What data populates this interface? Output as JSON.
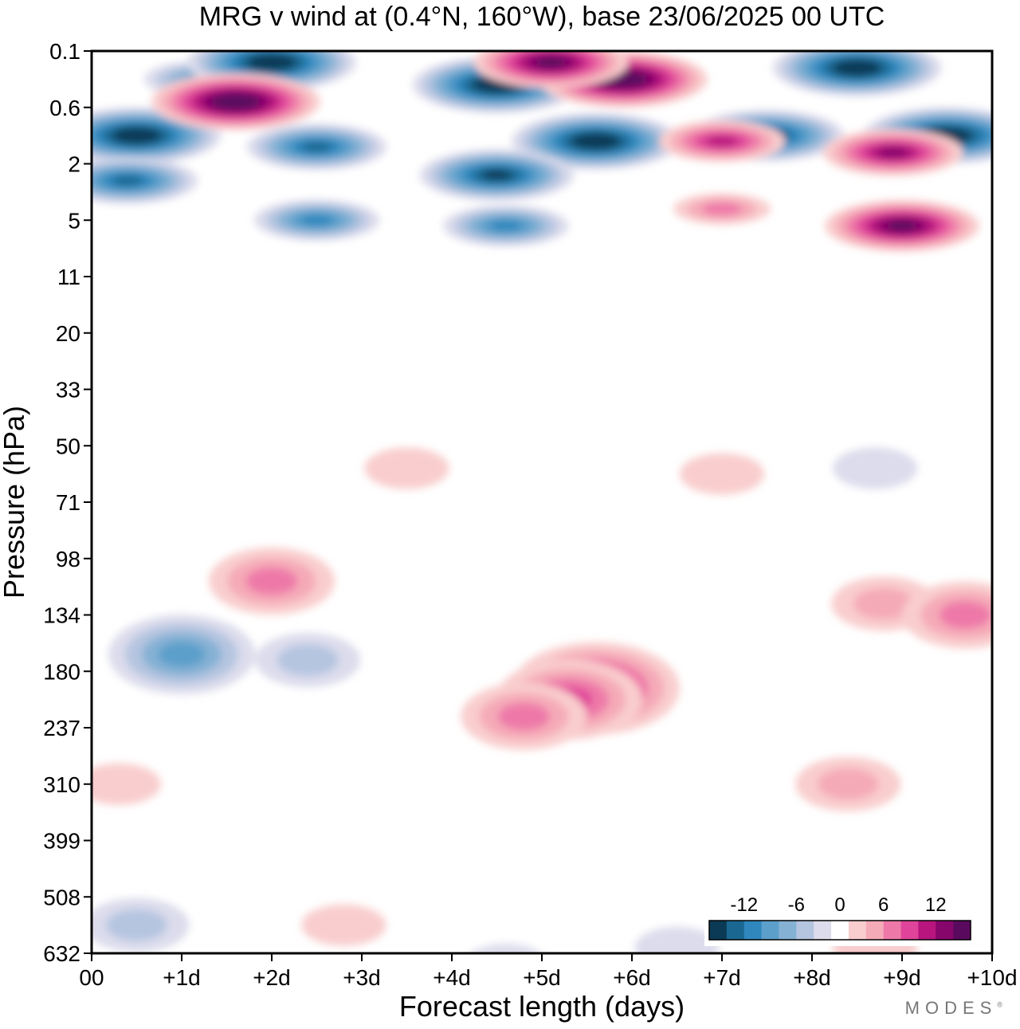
{
  "chart_data": {
    "type": "heatmap",
    "title": "MRG v wind at (0.4°N, 160°W),  base 23/06/2025  00 UTC",
    "xlabel": "Forecast length (days)",
    "ylabel": "Pressure (hPa)",
    "xlim": [
      0,
      10
    ],
    "x_ticks": [
      0,
      1,
      2,
      3,
      4,
      5,
      6,
      7,
      8,
      9,
      10
    ],
    "x_tick_labels": [
      "00",
      "+1d",
      "+2d",
      "+3d",
      "+4d",
      "+5d",
      "+6d",
      "+7d",
      "+8d",
      "+9d",
      "+10d"
    ],
    "y_levels": [
      0.1,
      0.6,
      2,
      5,
      11,
      20,
      33,
      50,
      71,
      98,
      134,
      180,
      237,
      310,
      399,
      508,
      632
    ],
    "y_tick_labels": [
      "0.1",
      "0.6",
      "2",
      "5",
      "11",
      "20",
      "33",
      "50",
      "71",
      "98",
      "134",
      "180",
      "237",
      "310",
      "399",
      "508",
      "632"
    ],
    "y_axis": "level index, pressure increasing downward",
    "colorbar": {
      "labels": [
        "-12",
        "-6",
        "0",
        "6",
        "12"
      ],
      "label_values": [
        -12,
        -6,
        0,
        6,
        12
      ],
      "bounds": [
        -16,
        -14,
        -12,
        -10,
        -8,
        -6,
        -4,
        -2,
        2,
        4,
        6,
        8,
        10,
        12,
        14,
        16
      ],
      "colors": [
        "#0b3a56",
        "#1a6892",
        "#2f87bd",
        "#5c9fcb",
        "#85b1d4",
        "#b5c5e0",
        "#dcdcec",
        "#ffffff",
        "#f9cdcd",
        "#f5aab8",
        "#ee79a8",
        "#e0449a",
        "#b8157f",
        "#87066c",
        "#5a0a5e"
      ],
      "placement": "bottom-right"
    },
    "features": [
      {
        "sign": "negative",
        "x": 1.2,
        "level": 0.5,
        "value": -8
      },
      {
        "sign": "negative",
        "x": 2.0,
        "level": 0.2,
        "value": -16
      },
      {
        "sign": "negative",
        "x": 4.5,
        "level": 0.6,
        "value": -16
      },
      {
        "sign": "negative",
        "x": 0.5,
        "level": 1.5,
        "value": -16
      },
      {
        "sign": "negative",
        "x": 2.5,
        "level": 1.7,
        "value": -12
      },
      {
        "sign": "negative",
        "x": 5.6,
        "level": 1.6,
        "value": -16
      },
      {
        "sign": "negative",
        "x": 7.5,
        "level": 1.5,
        "value": -14
      },
      {
        "sign": "negative",
        "x": 9.5,
        "level": 1.5,
        "value": -16
      },
      {
        "sign": "negative",
        "x": 8.5,
        "level": 0.3,
        "value": -16
      },
      {
        "sign": "negative",
        "x": 0.4,
        "level": 2.3,
        "value": -12
      },
      {
        "sign": "negative",
        "x": 4.5,
        "level": 2.2,
        "value": -14
      },
      {
        "sign": "negative",
        "x": 2.5,
        "level": 3.0,
        "value": -10
      },
      {
        "sign": "negative",
        "x": 4.6,
        "level": 3.1,
        "value": -10
      },
      {
        "sign": "negative",
        "x": 1.0,
        "level": 10.7,
        "value": -8
      },
      {
        "sign": "negative",
        "x": 2.4,
        "level": 10.8,
        "value": -4
      },
      {
        "sign": "negative",
        "x": 0.5,
        "level": 15.5,
        "value": -4
      },
      {
        "sign": "negative",
        "x": 4.6,
        "level": 16.2,
        "value": -2
      },
      {
        "sign": "negative",
        "x": 6.5,
        "level": 15.9,
        "value": -2
      },
      {
        "sign": "negative",
        "x": 8.7,
        "level": 7.4,
        "value": -2
      },
      {
        "sign": "positive",
        "x": 1.6,
        "level": 0.9,
        "value": 16
      },
      {
        "sign": "positive",
        "x": 5.9,
        "level": 0.5,
        "value": 16
      },
      {
        "sign": "positive",
        "x": 5.1,
        "level": 0.2,
        "value": 14
      },
      {
        "sign": "positive",
        "x": 7.0,
        "level": 1.6,
        "value": 10
      },
      {
        "sign": "positive",
        "x": 8.9,
        "level": 1.8,
        "value": 12
      },
      {
        "sign": "positive",
        "x": 9.0,
        "level": 3.1,
        "value": 14
      },
      {
        "sign": "positive",
        "x": 7.0,
        "level": 2.8,
        "value": 6
      },
      {
        "sign": "positive",
        "x": 5.6,
        "level": 11.3,
        "value": 10
      },
      {
        "sign": "positive",
        "x": 5.3,
        "level": 11.5,
        "value": 8
      },
      {
        "sign": "positive",
        "x": 4.8,
        "level": 11.8,
        "value": 6
      },
      {
        "sign": "positive",
        "x": 2.0,
        "level": 9.4,
        "value": 6
      },
      {
        "sign": "positive",
        "x": 8.8,
        "level": 9.8,
        "value": 4
      },
      {
        "sign": "positive",
        "x": 9.7,
        "level": 10.0,
        "value": 6
      },
      {
        "sign": "positive",
        "x": 8.4,
        "level": 13.0,
        "value": 4
      },
      {
        "sign": "positive",
        "x": 0.3,
        "level": 13.0,
        "value": 2
      },
      {
        "sign": "positive",
        "x": 2.8,
        "level": 15.5,
        "value": 2
      },
      {
        "sign": "positive",
        "x": 8.7,
        "level": 15.9,
        "value": 2
      },
      {
        "sign": "positive",
        "x": 3.5,
        "level": 7.4,
        "value": 2
      },
      {
        "sign": "positive",
        "x": 7.0,
        "level": 7.5,
        "value": 2
      }
    ]
  }
}
